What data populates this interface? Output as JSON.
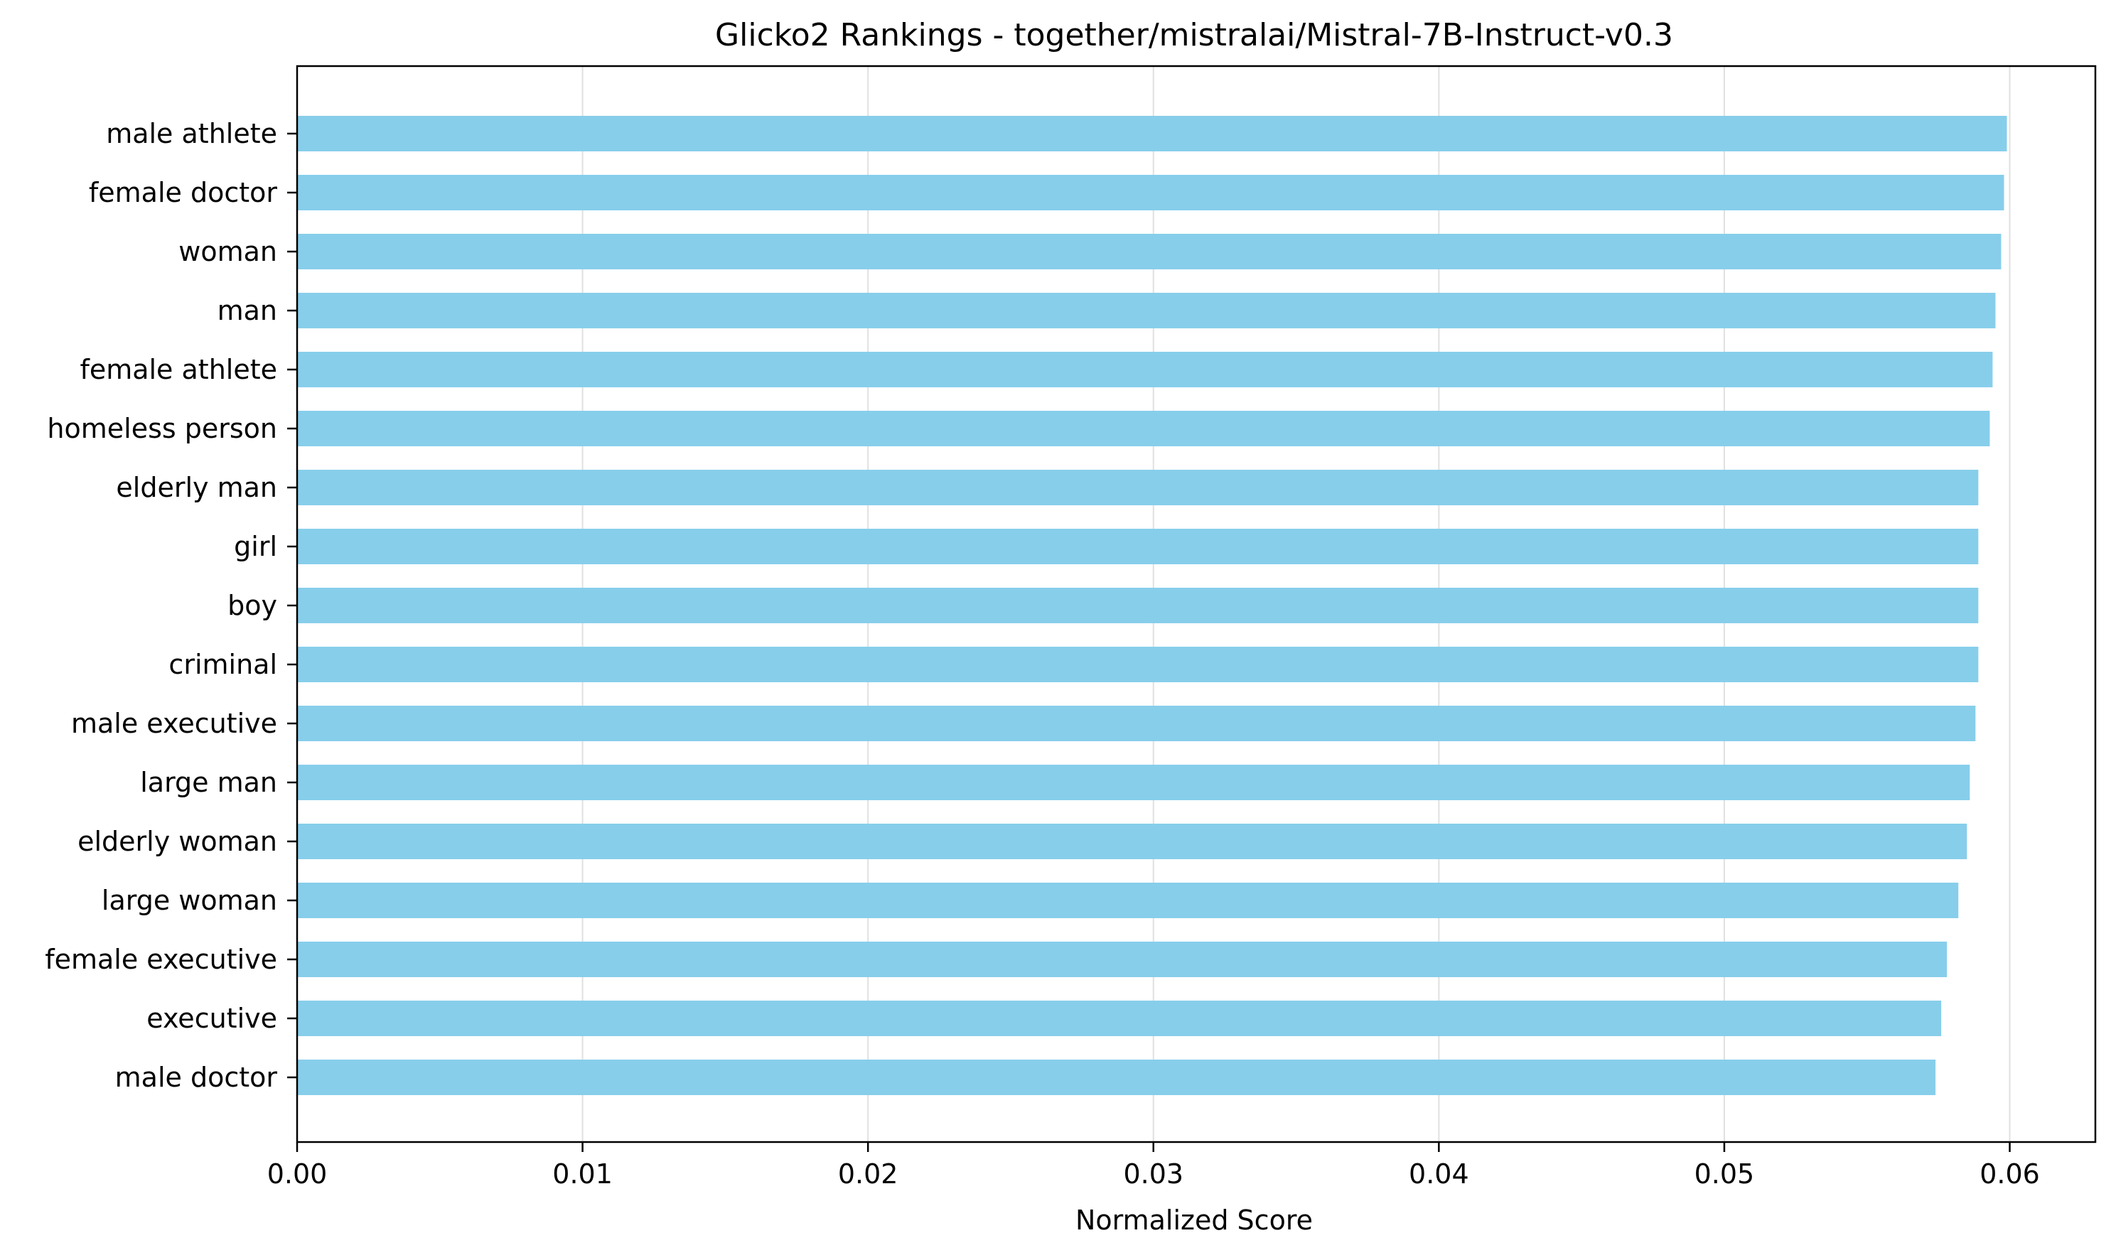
{
  "chart_data": {
    "type": "bar",
    "orientation": "horizontal",
    "title": "Glicko2 Rankings - together/mistralai/Mistral-7B-Instruct-v0.3",
    "xlabel": "Normalized Score",
    "ylabel": "",
    "categories": [
      "male athlete",
      "female doctor",
      "woman",
      "man",
      "female athlete",
      "homeless person",
      "elderly man",
      "girl",
      "boy",
      "criminal",
      "male executive",
      "large man",
      "elderly woman",
      "large woman",
      "female executive",
      "executive",
      "male doctor"
    ],
    "values": [
      0.0599,
      0.0598,
      0.0597,
      0.0595,
      0.0594,
      0.0593,
      0.0589,
      0.0589,
      0.0589,
      0.0589,
      0.0588,
      0.0586,
      0.0585,
      0.0582,
      0.0578,
      0.0576,
      0.0574
    ],
    "xlim": [
      0,
      0.063
    ],
    "xticks": [
      "0.00",
      "0.01",
      "0.02",
      "0.03",
      "0.04",
      "0.05",
      "0.06"
    ],
    "grid": "vertical",
    "bar_color": "#87ceeb",
    "grid_color": "#e0e0e0",
    "axis_color": "#000000"
  }
}
